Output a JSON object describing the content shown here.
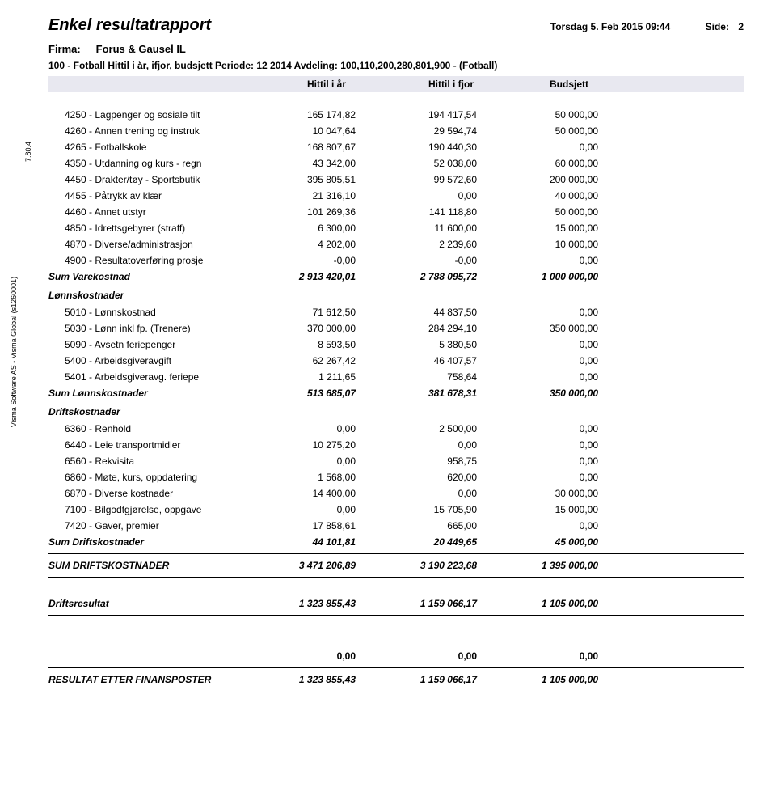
{
  "sidebar": {
    "software": "Visma Software AS - Visma Global  (s1260001)",
    "version": "7.80.4"
  },
  "header": {
    "title": "Enkel resultatrapport",
    "date": "Torsdag 5. Feb 2015 09:44",
    "side_label": "Side:",
    "side_value": "2",
    "firma_label": "Firma:",
    "firma_value": "Forus & Gausel IL",
    "subheader": "100 - Fotball Hittil i år, ifjor, budsjett Periode: 12 2014 Avdeling: 100,110,200,280,801,900 - (Fotball)",
    "col1": "Hittil i år",
    "col2": "Hittil i fjor",
    "col3": "Budsjett"
  },
  "rows1": [
    {
      "label": "4250 - Lagpenger og sosiale tilt",
      "c1": "165 174,82",
      "c2": "194 417,54",
      "c3": "50 000,00"
    },
    {
      "label": "4260 - Annen trening og instruk",
      "c1": "10 047,64",
      "c2": "29 594,74",
      "c3": "50 000,00"
    },
    {
      "label": "4265 - Fotballskole",
      "c1": "168 807,67",
      "c2": "190 440,30",
      "c3": "0,00"
    },
    {
      "label": "4350 - Utdanning og kurs - regn",
      "c1": "43 342,00",
      "c2": "52 038,00",
      "c3": "60 000,00"
    },
    {
      "label": "4450 - Drakter/tøy - Sportsbutik",
      "c1": "395 805,51",
      "c2": "99 572,60",
      "c3": "200 000,00"
    },
    {
      "label": "4455 - Påtrykk av klær",
      "c1": "21 316,10",
      "c2": "0,00",
      "c3": "40 000,00"
    },
    {
      "label": "4460 - Annet utstyr",
      "c1": "101 269,36",
      "c2": "141 118,80",
      "c3": "50 000,00"
    },
    {
      "label": "4850 - Idrettsgebyrer (straff)",
      "c1": "6 300,00",
      "c2": "11 600,00",
      "c3": "15 000,00"
    },
    {
      "label": "4870 - Diverse/administrasjon",
      "c1": "4 202,00",
      "c2": "2 239,60",
      "c3": "10 000,00"
    },
    {
      "label": "4900 - Resultatoverføring prosje",
      "c1": "-0,00",
      "c2": "-0,00",
      "c3": "0,00"
    }
  ],
  "sum1": {
    "label": "Sum Varekostnad",
    "c1": "2 913 420,01",
    "c2": "2 788 095,72",
    "c3": "1 000 000,00"
  },
  "section2": {
    "label": "Lønnskostnader"
  },
  "rows2": [
    {
      "label": "5010 - Lønnskostnad",
      "c1": "71 612,50",
      "c2": "44 837,50",
      "c3": "0,00"
    },
    {
      "label": "5030 - Lønn inkl fp. (Trenere)",
      "c1": "370 000,00",
      "c2": "284 294,10",
      "c3": "350 000,00"
    },
    {
      "label": "5090 - Avsetn feriepenger",
      "c1": "8 593,50",
      "c2": "5 380,50",
      "c3": "0,00"
    },
    {
      "label": "5400 - Arbeidsgiveravgift",
      "c1": "62 267,42",
      "c2": "46 407,57",
      "c3": "0,00"
    },
    {
      "label": "5401 - Arbeidsgiveravg. feriepe",
      "c1": "1 211,65",
      "c2": "758,64",
      "c3": "0,00"
    }
  ],
  "sum2": {
    "label": "Sum Lønnskostnader",
    "c1": "513 685,07",
    "c2": "381 678,31",
    "c3": "350 000,00"
  },
  "section3": {
    "label": "Driftskostnader"
  },
  "rows3": [
    {
      "label": "6360 - Renhold",
      "c1": "0,00",
      "c2": "2 500,00",
      "c3": "0,00"
    },
    {
      "label": "6440 - Leie transportmidler",
      "c1": "10 275,20",
      "c2": "0,00",
      "c3": "0,00"
    },
    {
      "label": "6560 - Rekvisita",
      "c1": "0,00",
      "c2": "958,75",
      "c3": "0,00"
    },
    {
      "label": "6860 - Møte, kurs, oppdatering",
      "c1": "1 568,00",
      "c2": "620,00",
      "c3": "0,00"
    },
    {
      "label": "6870 - Diverse kostnader",
      "c1": "14 400,00",
      "c2": "0,00",
      "c3": "30 000,00"
    },
    {
      "label": "7100 - Bilgodtgjørelse, oppgave",
      "c1": "0,00",
      "c2": "15 705,90",
      "c3": "15 000,00"
    },
    {
      "label": "7420 - Gaver, premier",
      "c1": "17 858,61",
      "c2": "665,00",
      "c3": "0,00"
    }
  ],
  "sum3": {
    "label": "Sum Driftskostnader",
    "c1": "44 101,81",
    "c2": "20 449,65",
    "c3": "45 000,00"
  },
  "grand1": {
    "label": "SUM DRIFTSKOSTNADER",
    "c1": "3 471 206,89",
    "c2": "3 190 223,68",
    "c3": "1 395 000,00"
  },
  "grand2": {
    "label": "Driftsresultat",
    "c1": "1 323 855,43",
    "c2": "1 159 066,17",
    "c3": "1 105 000,00"
  },
  "zeros": {
    "c1": "0,00",
    "c2": "0,00",
    "c3": "0,00"
  },
  "grand3": {
    "label": "RESULTAT ETTER FINANSPOSTER",
    "c1": "1 323 855,43",
    "c2": "1 159 066,17",
    "c3": "1 105 000,00"
  }
}
